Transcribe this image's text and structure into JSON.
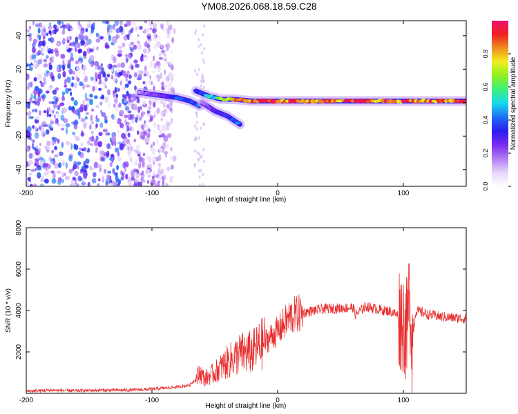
{
  "title": "YM08.2026.068.18.59.C28",
  "colors": {
    "line": "#e83030",
    "axis": "#000000",
    "colormap": [
      "#ffffff",
      "#e6d5fb",
      "#b27cf3",
      "#7b2cf0",
      "#2b1cf0",
      "#1e6cf5",
      "#16d8ee",
      "#3cf080",
      "#8cf020",
      "#f0f020",
      "#f09020",
      "#f02020",
      "#f01070"
    ]
  },
  "chart_data": [
    {
      "type": "heatmap",
      "title": "",
      "xlabel": "Height of straight line (km)",
      "ylabel": "Frequency (Hz)",
      "xlim": [
        -200,
        150
      ],
      "ylim": [
        -50,
        49
      ],
      "xticks": [
        "-200",
        "-100",
        "0",
        "100"
      ],
      "yticks": [
        "-40",
        "-20",
        "0",
        "20",
        "40"
      ],
      "colorbar": {
        "label": "Normalized spectral amplitude",
        "range": [
          0,
          1
        ],
        "ticks": [
          "0.0",
          "0.2",
          "0.4",
          "0.6",
          "0.8"
        ]
      },
      "features": [
        {
          "kind": "noise",
          "x_range": [
            -200,
            -82
          ],
          "y_range": [
            -50,
            49
          ],
          "amplitude": 0.15
        },
        {
          "kind": "ridge",
          "points": [
            [
              -110,
              6
            ],
            [
              -100,
              5
            ],
            [
              -90,
              4
            ],
            [
              -80,
              3
            ],
            [
              -70,
              1
            ],
            [
              -62,
              -2
            ]
          ],
          "amplitude": 0.45
        },
        {
          "kind": "ridge",
          "points": [
            [
              -65,
              7
            ],
            [
              -55,
              4
            ],
            [
              -45,
              2
            ],
            [
              -35,
              2
            ],
            [
              -20,
              1
            ],
            [
              0,
              1
            ],
            [
              50,
              1
            ],
            [
              100,
              1
            ],
            [
              150,
              1
            ]
          ],
          "amplitude": 0.95
        },
        {
          "kind": "ridge",
          "points": [
            [
              -60,
              0
            ],
            [
              -50,
              -5
            ],
            [
              -40,
              -8
            ],
            [
              -30,
              -13
            ]
          ],
          "amplitude": 0.5
        }
      ]
    },
    {
      "type": "line",
      "title": "",
      "xlabel": "Height of straight line (km)",
      "ylabel": "SNR (10 * v/v)",
      "xlim": [
        -200,
        150
      ],
      "ylim": [
        0,
        8000
      ],
      "xticks": [
        "-200",
        "-100",
        "0",
        "100"
      ],
      "yticks": [
        "2000",
        "4000",
        "6000",
        "8000"
      ],
      "series": [
        {
          "name": "SNR",
          "x": [
            -200,
            -180,
            -160,
            -140,
            -120,
            -100,
            -90,
            -80,
            -70,
            -65,
            -62,
            -58,
            -50,
            -40,
            -30,
            -20,
            -10,
            0,
            10,
            20,
            30,
            40,
            50,
            60,
            62,
            70,
            80,
            90,
            95,
            100,
            103,
            105,
            107,
            110,
            120,
            130,
            140,
            150
          ],
          "y": [
            100,
            150,
            120,
            150,
            150,
            200,
            250,
            300,
            400,
            700,
            1000,
            700,
            1000,
            1500,
            1900,
            2000,
            2500,
            3000,
            3700,
            3900,
            4000,
            4100,
            4100,
            4150,
            3800,
            4200,
            4050,
            3950,
            3800,
            3500,
            3000,
            5000,
            2500,
            4000,
            3800,
            3700,
            3650,
            3600
          ]
        }
      ]
    }
  ]
}
